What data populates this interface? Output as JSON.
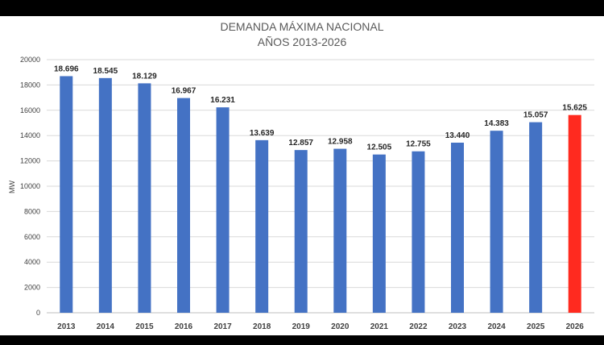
{
  "chart_data": {
    "type": "bar",
    "title": "DEMANDA MÁXIMA NACIONAL",
    "subtitle": "AÑOS 2013-2026",
    "ylabel": "MW",
    "xlabel": "",
    "ylim": [
      0,
      20000
    ],
    "yticks": [
      0,
      2000,
      4000,
      6000,
      8000,
      10000,
      12000,
      14000,
      16000,
      18000,
      20000
    ],
    "grid": true,
    "categories": [
      "2013",
      "2014",
      "2015",
      "2016",
      "2017",
      "2018",
      "2019",
      "2020",
      "2021",
      "2022",
      "2023",
      "2024",
      "2025",
      "2026"
    ],
    "values": [
      18696,
      18545,
      18129,
      16967,
      16231,
      13639,
      12857,
      12958,
      12505,
      12755,
      13440,
      14383,
      15057,
      15625
    ],
    "data_labels": [
      "18.696",
      "18.545",
      "18.129",
      "16.967",
      "16.231",
      "13.639",
      "12.857",
      "12.958",
      "12.505",
      "12.755",
      "13.440",
      "14.383",
      "15.057",
      "15.625"
    ],
    "colors": {
      "bar": "#4472c4",
      "highlight_bar": "#ff2a1f",
      "highlight_index": 13
    }
  }
}
